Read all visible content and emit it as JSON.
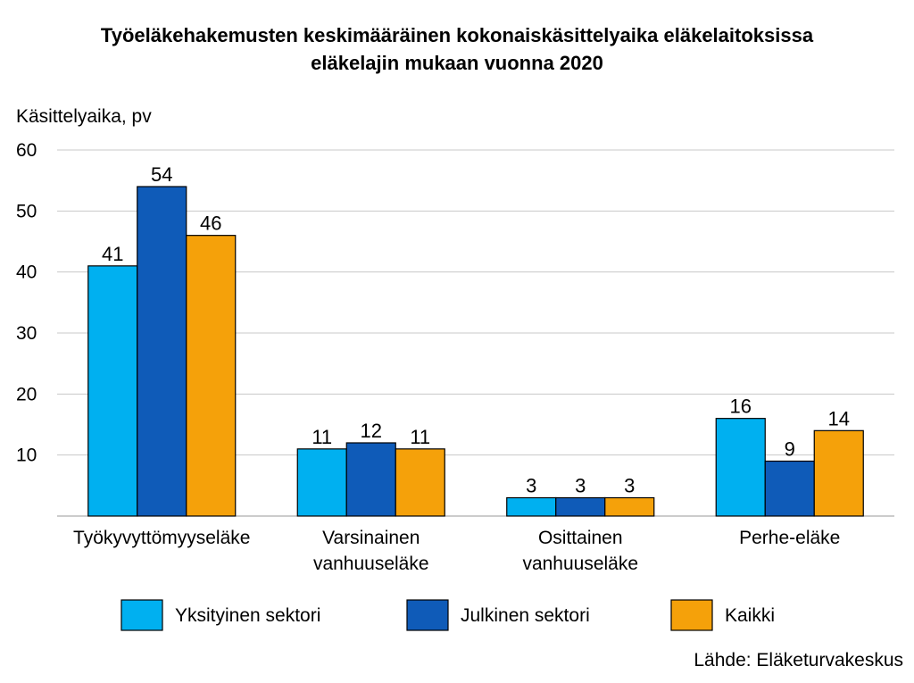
{
  "chart_data": {
    "type": "bar",
    "title_lines": [
      "Työeläkehakemusten keskimääräinen kokonaiskäsittelyaika eläkelaitoksissa",
      "eläkelajin mukaan vuonna 2020"
    ],
    "ylabel": "Käsittelyaika, pv",
    "ylim": [
      0,
      60
    ],
    "yticks": [
      10,
      20,
      30,
      40,
      50,
      60
    ],
    "grid": true,
    "categories": [
      [
        "Työkyvyttömyyseläke"
      ],
      [
        "Varsinainen",
        "vanhuuseläke"
      ],
      [
        "Osittainen",
        "vanhuuseläke"
      ],
      [
        "Perhe-eläke"
      ]
    ],
    "series": [
      {
        "name": "Yksityinen sektori",
        "color": "#00B0F0",
        "values": [
          41,
          11,
          3,
          16
        ]
      },
      {
        "name": "Julkinen sektori",
        "color": "#0F5BB8",
        "values": [
          54,
          12,
          3,
          9
        ]
      },
      {
        "name": "Kaikki",
        "color": "#F5A10A",
        "values": [
          46,
          11,
          3,
          14
        ]
      }
    ],
    "legend_position": "bottom",
    "source": "Lähde: Eläketurvakeskus"
  }
}
